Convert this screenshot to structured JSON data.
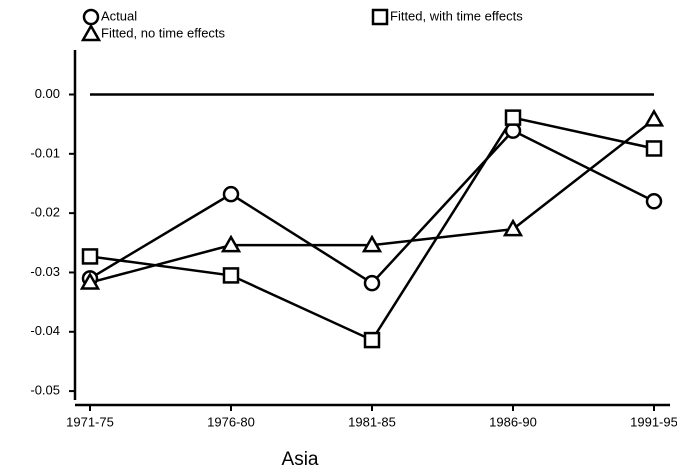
{
  "chart_data": {
    "type": "line",
    "x_label": "Asia",
    "categories": [
      "1971-75",
      "1976-80",
      "1981-85",
      "1986-90",
      "1991-95"
    ],
    "series": [
      {
        "name": "Actual",
        "marker": "circle",
        "color": "#000000",
        "values": [
          -0.031,
          -0.0168,
          -0.0318,
          -0.0061,
          -0.018
        ]
      },
      {
        "name": "Fitted, no time effects",
        "marker": "triangle",
        "color": "#000000",
        "values": [
          -0.0317,
          -0.0254,
          -0.0254,
          -0.0227,
          -0.0042
        ]
      },
      {
        "name": "Fitted, with time effects",
        "marker": "square",
        "color": "#000000",
        "values": [
          -0.0273,
          -0.0305,
          -0.0414,
          -0.0039,
          -0.0091
        ]
      }
    ],
    "hline": 0,
    "ylim": [
      -0.0515,
      0.0075
    ],
    "yticks": [
      -0.05,
      -0.04,
      -0.03,
      -0.02,
      -0.01,
      {
        "value": 0,
        "label": "0.00"
      }
    ],
    "grid": false
  }
}
